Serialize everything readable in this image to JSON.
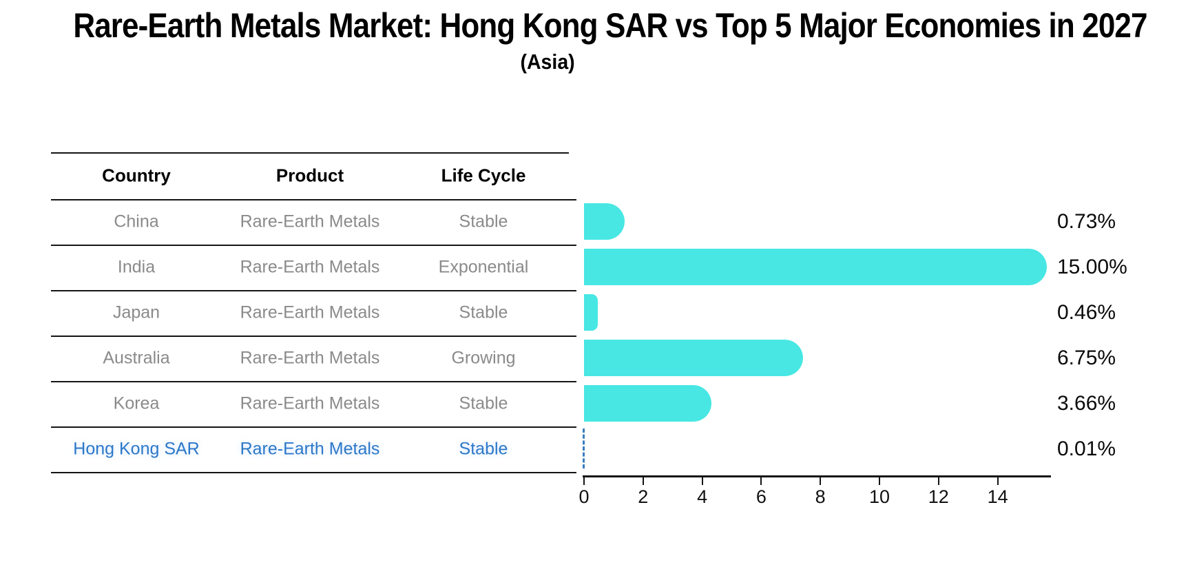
{
  "title": "Rare-Earth Metals Market: Hong Kong SAR vs Top 5 Major Economies in 2027",
  "subtitle": "(Asia)",
  "table": {
    "headers": [
      "Country",
      "Product",
      "Life Cycle"
    ],
    "rows": [
      {
        "country": "China",
        "product": "Rare-Earth Metals",
        "life_cycle": "Stable",
        "highlight": false
      },
      {
        "country": "India",
        "product": "Rare-Earth Metals",
        "life_cycle": "Exponential",
        "highlight": false
      },
      {
        "country": "Japan",
        "product": "Rare-Earth Metals",
        "life_cycle": "Stable",
        "highlight": false
      },
      {
        "country": "Australia",
        "product": "Rare-Earth Metals",
        "life_cycle": "Growing",
        "highlight": false
      },
      {
        "country": "Korea",
        "product": "Rare-Earth Metals",
        "life_cycle": "Stable",
        "highlight": false
      },
      {
        "country": "Hong Kong SAR",
        "product": "Rare-Earth Metals",
        "life_cycle": "Stable",
        "highlight": true
      }
    ]
  },
  "chart_data": {
    "type": "bar",
    "orientation": "horizontal",
    "categories": [
      "China",
      "India",
      "Japan",
      "Australia",
      "Korea",
      "Hong Kong SAR"
    ],
    "values": [
      0.73,
      15.0,
      0.46,
      6.75,
      3.66,
      0.01
    ],
    "value_labels": [
      "0.73%",
      "15.00%",
      "0.46%",
      "6.75%",
      "3.66%",
      "0.01%"
    ],
    "title": "Rare-Earth Metals Market: Hong Kong SAR vs Top 5 Major Economies in 2027 (Asia)",
    "xlabel": "",
    "ylabel": "",
    "xlim": [
      0,
      15.8
    ],
    "xticks": [
      0,
      2,
      4,
      6,
      8,
      10,
      12,
      14
    ],
    "grid": false,
    "legend": false,
    "bar_color": "#48e7e3",
    "highlight_style": "dashed-vertical-line",
    "highlight_color": "#3a7dbf"
  },
  "colors": {
    "background": "#ffffff",
    "title_text": "#000000",
    "table_text": "#8a8a8a",
    "highlight_text": "#2d78c8",
    "rule": "#141414",
    "value_label_text": "#0a0a0a"
  }
}
